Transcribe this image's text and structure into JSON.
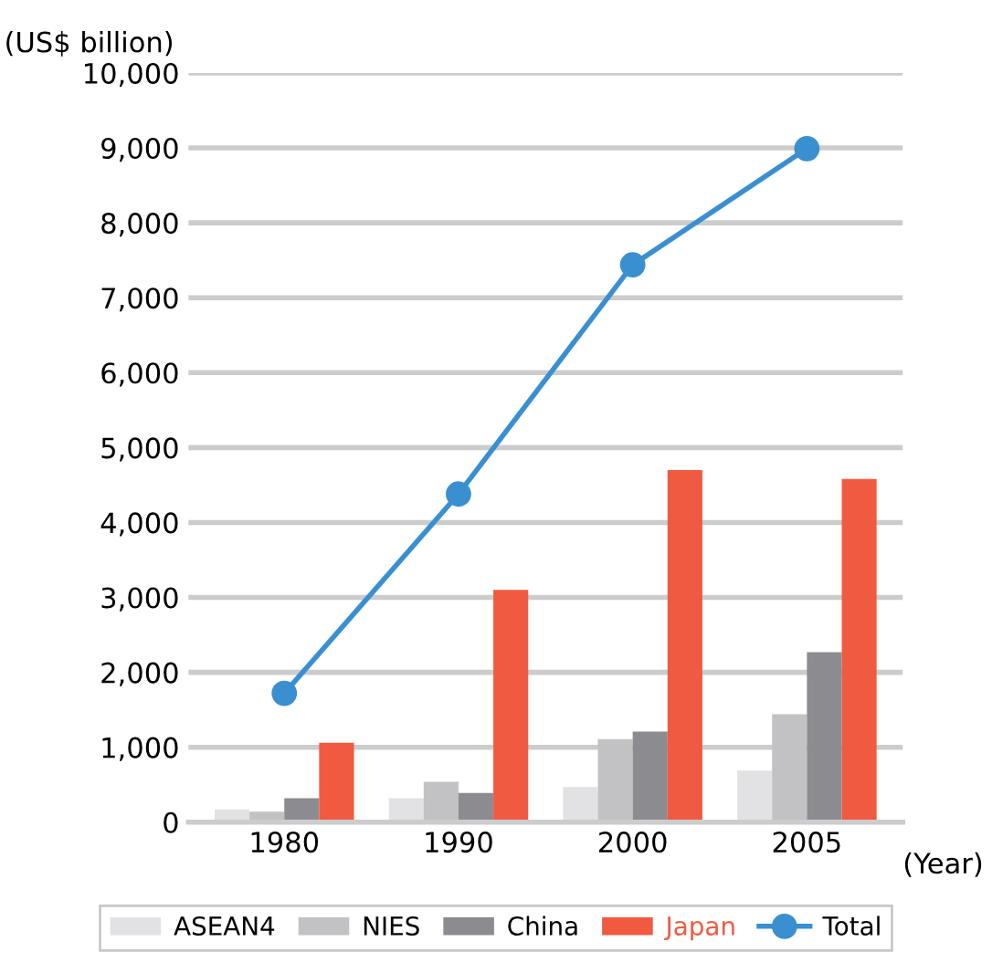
{
  "chart_data": {
    "type": "bar",
    "ylabel": "(US$ billion)",
    "xlabel": "(Year)",
    "categories": [
      "1980",
      "1990",
      "2000",
      "2005"
    ],
    "series": [
      {
        "name": "ASEAN4",
        "color": "#e2e2e4",
        "values": [
          170,
          320,
          470,
          690
        ]
      },
      {
        "name": "NIES",
        "color": "#c2c2c4",
        "values": [
          140,
          540,
          1110,
          1440
        ]
      },
      {
        "name": "China",
        "color": "#8c8c90",
        "values": [
          320,
          390,
          1210,
          2270
        ]
      },
      {
        "name": "Japan",
        "color": "#f05a40",
        "values": [
          1060,
          3100,
          4700,
          4580
        ]
      },
      {
        "name": "Total",
        "type": "line",
        "color": "#3a8fd0",
        "values": [
          1720,
          4380,
          7440,
          8990
        ]
      }
    ],
    "ylim": [
      0,
      10000
    ],
    "yticks": [
      {
        "value": 0,
        "label": "0"
      },
      {
        "value": 1000,
        "label": "1,000"
      },
      {
        "value": 2000,
        "label": "2,000"
      },
      {
        "value": 3000,
        "label": "3,000"
      },
      {
        "value": 4000,
        "label": "4,000"
      },
      {
        "value": 5000,
        "label": "5,000"
      },
      {
        "value": 6000,
        "label": "6,000"
      },
      {
        "value": 7000,
        "label": "7,000"
      },
      {
        "value": 8000,
        "label": "8,000"
      },
      {
        "value": 9000,
        "label": "9,000"
      },
      {
        "value": 10000,
        "label": "10,000"
      }
    ],
    "grid": "y",
    "legend": "bottom",
    "marker": "circle"
  }
}
